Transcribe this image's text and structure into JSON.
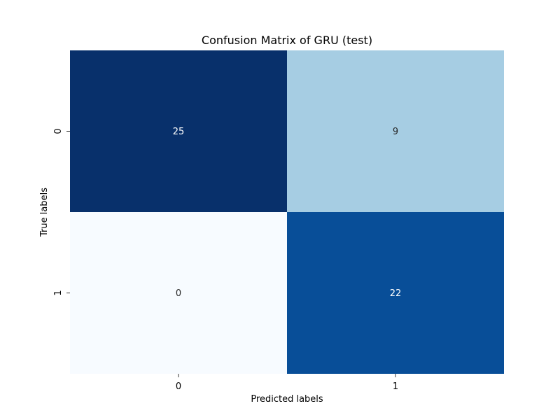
{
  "chart_data": {
    "type": "heatmap",
    "title": "Confusion Matrix of GRU (test)",
    "xlabel": "Predicted labels",
    "ylabel": "True labels",
    "x_categories": [
      "0",
      "1"
    ],
    "y_categories": [
      "0",
      "1"
    ],
    "values": [
      [
        25,
        9
      ],
      [
        0,
        22
      ]
    ],
    "colormap": "Blues",
    "colorbar": false,
    "cell_colors": [
      [
        "#08306b",
        "#a6cde3"
      ],
      [
        "#f7fbff",
        "#084e98"
      ]
    ],
    "annotation_colors": [
      [
        "#ffffff",
        "#262626"
      ],
      [
        "#262626",
        "#ffffff"
      ]
    ]
  }
}
